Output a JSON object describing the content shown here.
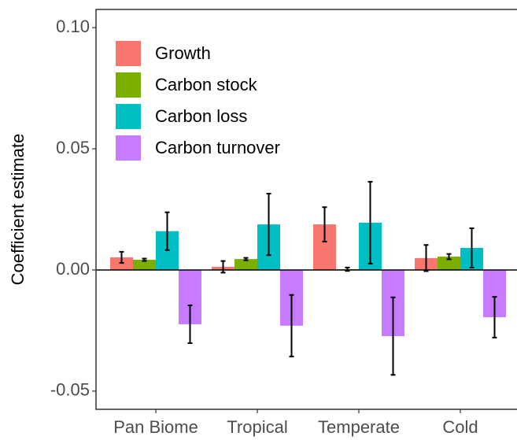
{
  "chart_data": {
    "type": "bar",
    "y_label": "Coefficient estimate",
    "categories": [
      "Pan Biome",
      "Tropical",
      "Temperate",
      "Cold"
    ],
    "series": [
      {
        "name": "Growth",
        "color": "#F8766D",
        "values": [
          0.0052,
          0.0013,
          0.0188,
          0.0049
        ],
        "errors": [
          0.0023,
          0.0024,
          0.0071,
          0.0054
        ]
      },
      {
        "name": "Carbon stock",
        "color": "#7CAE00",
        "values": [
          0.0042,
          0.0045,
          0.0003,
          0.0055
        ],
        "errors": [
          0.0005,
          0.0005,
          0.0007,
          0.0011
        ]
      },
      {
        "name": "Carbon loss",
        "color": "#00BFC4",
        "values": [
          0.016,
          0.0188,
          0.0195,
          0.0091
        ],
        "errors": [
          0.0078,
          0.0127,
          0.0169,
          0.0081
        ]
      },
      {
        "name": "Carbon turnover",
        "color": "#C77CFF",
        "values": [
          -0.0224,
          -0.023,
          -0.0273,
          -0.0195
        ],
        "errors": [
          0.0078,
          0.0127,
          0.016,
          0.0084
        ]
      }
    ],
    "ylim": [
      -0.0575,
      0.1075
    ],
    "yticks": [
      -0.05,
      {
        "value": 0,
        "label": "0.00"
      },
      0.05,
      {
        "value": 0.1,
        "label": "0.10"
      }
    ],
    "legend": "top-left"
  }
}
